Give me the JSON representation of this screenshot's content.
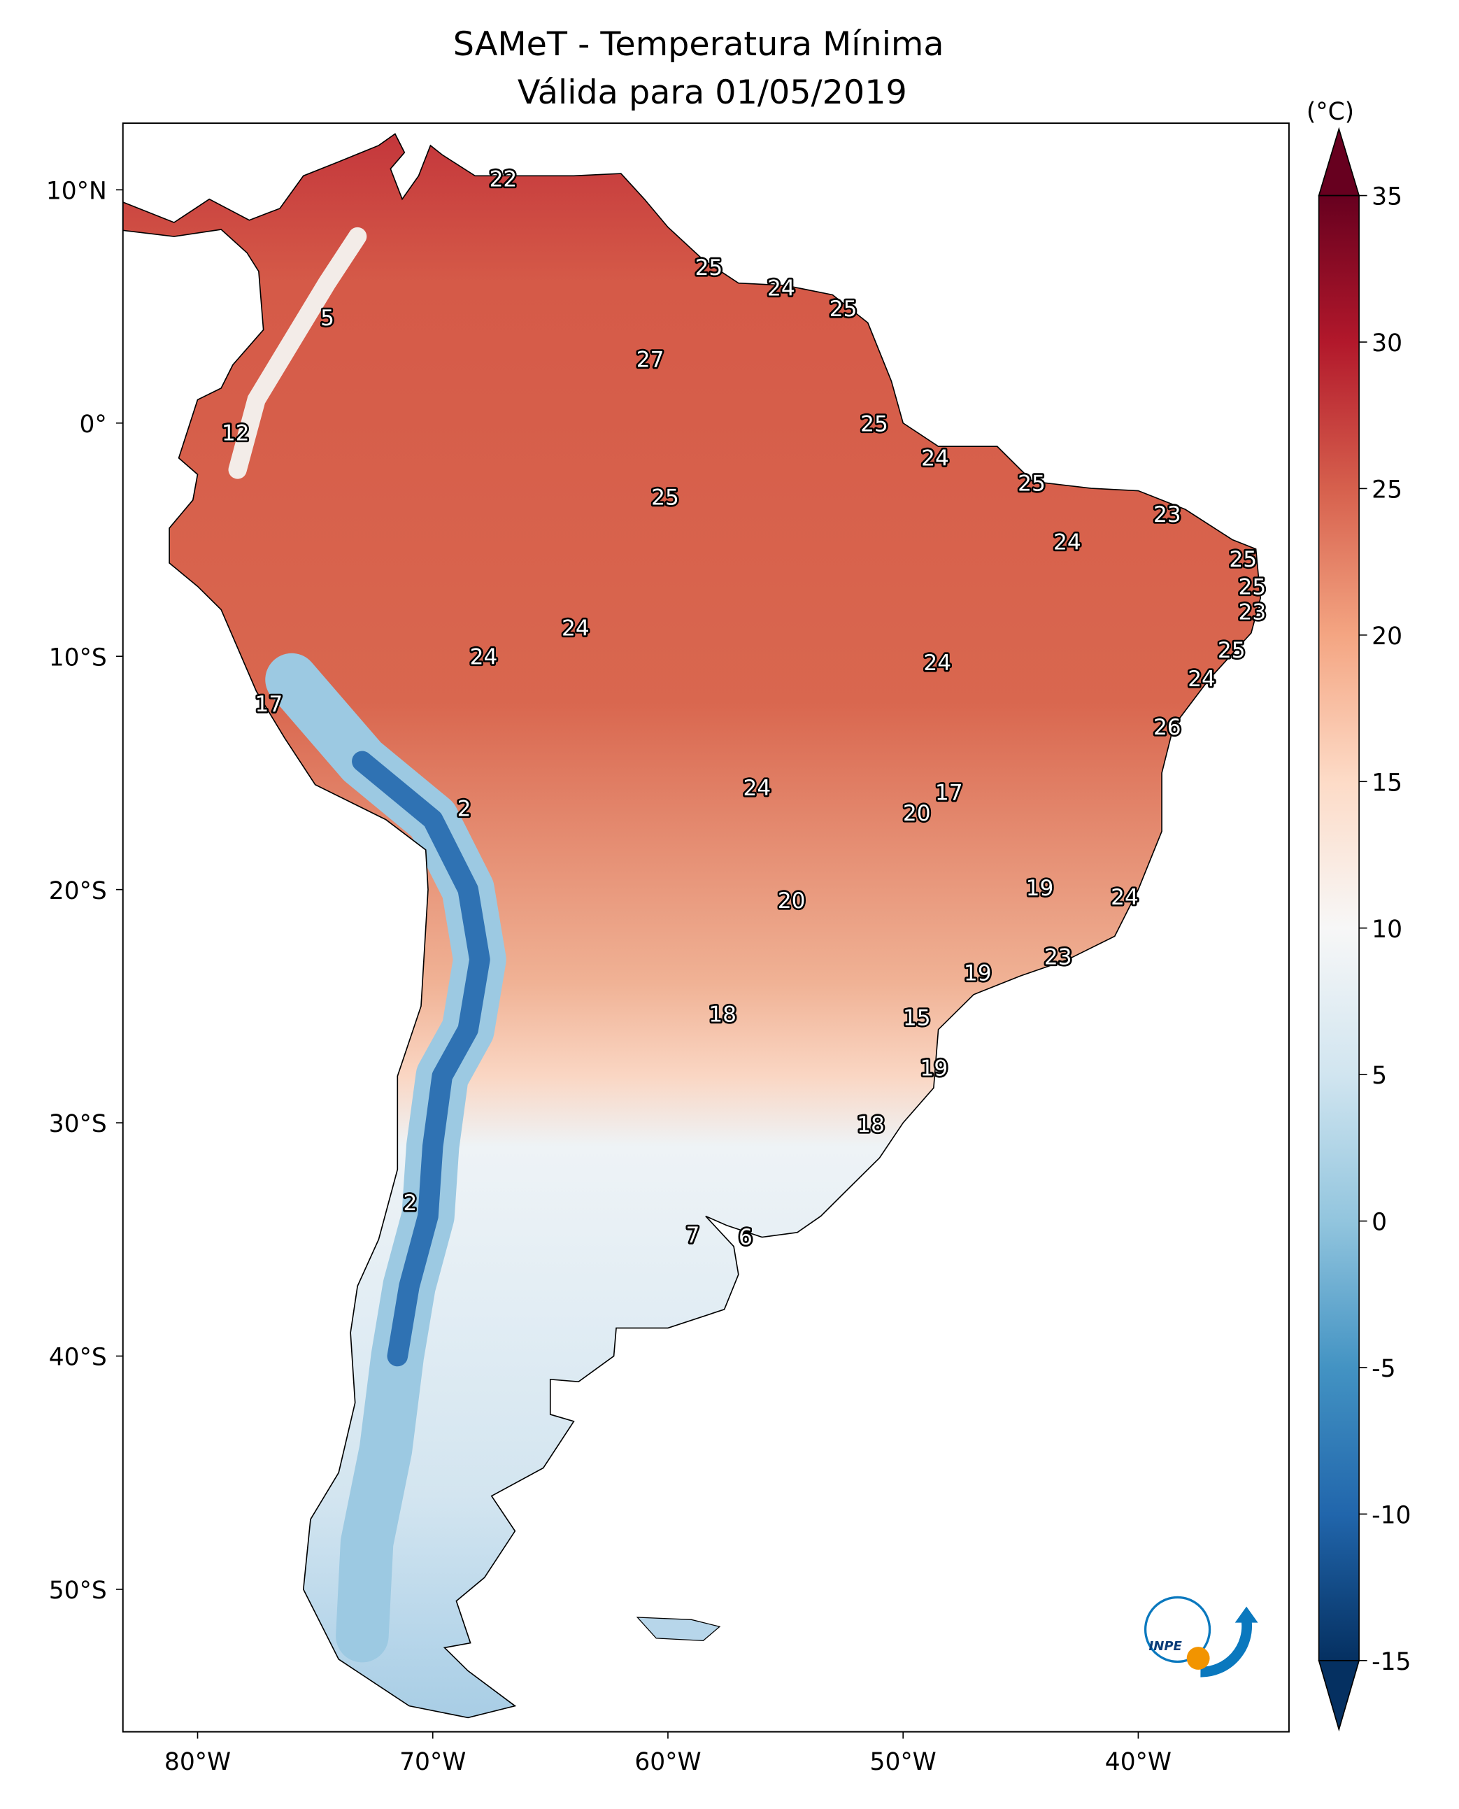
{
  "title": {
    "line1": "SAMeT - Temperatura Mínima",
    "line2": "Válida para 01/05/2019"
  },
  "map": {
    "longitude_ticks": [
      "80°W",
      "70°W",
      "60°W",
      "50°W",
      "40°W"
    ],
    "latitude_ticks": [
      "10°N",
      "0°",
      "10°S",
      "20°S",
      "30°S",
      "40°S",
      "50°S"
    ],
    "station_values": [
      "22",
      "25",
      "24",
      "25",
      "5",
      "27",
      "12",
      "25",
      "24",
      "25",
      "25",
      "23",
      "24",
      "25",
      "25",
      "23",
      "24",
      "25",
      "24",
      "24",
      "24",
      "17",
      "26",
      "24",
      "17",
      "2",
      "20",
      "19",
      "24",
      "20",
      "23",
      "19",
      "18",
      "15",
      "19",
      "18",
      "2",
      "7",
      "6"
    ]
  },
  "colorbar": {
    "unit_label": "(°C)",
    "ticks": [
      "35",
      "30",
      "25",
      "20",
      "15",
      "10",
      "5",
      "0",
      "-5",
      "-10",
      "-15"
    ],
    "range": [
      -15,
      35
    ],
    "extend": "both",
    "colormap": [
      "#053061",
      "#2166ac",
      "#4393c3",
      "#92c5de",
      "#d1e5f0",
      "#f7f7f7",
      "#fddbc7",
      "#f4a582",
      "#d6604d",
      "#b2182b",
      "#67001f"
    ]
  },
  "logo": {
    "text": "INPE",
    "colors": {
      "blue": "#0a78be",
      "orange": "#f29400"
    }
  }
}
